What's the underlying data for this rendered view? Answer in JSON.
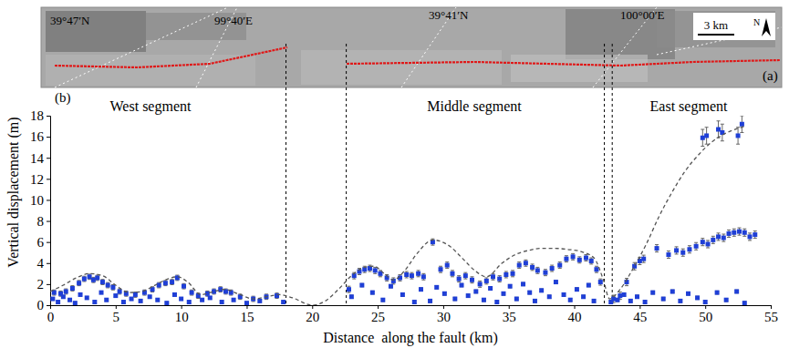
{
  "chart_data": {
    "type": "scatter",
    "x_label": "Distance  along the fault (km)",
    "y_label": "Vertical displacement (m)",
    "xlim": [
      0,
      55
    ],
    "xticks": [
      0,
      5,
      10,
      15,
      20,
      25,
      30,
      35,
      40,
      45,
      50,
      55
    ],
    "ylim": [
      0,
      18
    ],
    "yticks": [
      0,
      2,
      4,
      6,
      8,
      10,
      12,
      14,
      16,
      18
    ],
    "panel_labels": [
      "(a)",
      "(b)"
    ],
    "segment_labels": [
      "West segment",
      "Middle segment",
      "East segment"
    ],
    "map_labels": [
      "39°47′N",
      "99°40′E",
      "39°41′N",
      "100°00′E"
    ],
    "scale_bar": "3 km",
    "north_label": "N",
    "segment_boundaries": [
      18,
      22.6,
      42.3,
      42.9
    ],
    "series": [
      {
        "type": "scatter",
        "color": "#1f3fd6",
        "marker": "square",
        "x": [
          0.3,
          0.8,
          1.2,
          1.7,
          2.2,
          2.6,
          3.0,
          3.3,
          3.6,
          4.0,
          4.4,
          4.8,
          5.3,
          5.8,
          6.5,
          7.2,
          7.8,
          8.3,
          8.8,
          9.3,
          9.7,
          10.2,
          10.8,
          11.3,
          12.0,
          12.5,
          13.0,
          13.4,
          13.8,
          14.5,
          15.5,
          16.5,
          17.3
        ],
        "values": [
          1.2,
          1.1,
          1.3,
          1.6,
          2.1,
          2.5,
          2.7,
          2.4,
          2.6,
          2.2,
          1.9,
          1.7,
          1.3,
          1.1,
          1.0,
          1.2,
          1.5,
          1.9,
          2.1,
          2.2,
          2.6,
          1.8,
          1.2,
          0.9,
          1.1,
          1.3,
          1.5,
          1.3,
          1.2,
          0.8,
          0.6,
          0.8,
          0.9
        ],
        "errors": [
          0.25,
          0.25,
          0.25,
          0.25,
          0.25,
          0.25,
          0.25,
          0.25,
          0.25,
          0.25,
          0.25,
          0.25,
          0.25,
          0.25,
          0.25,
          0.25,
          0.25,
          0.25,
          0.25,
          0.25,
          0.25,
          0.25,
          0.25,
          0.25,
          0.25,
          0.25,
          0.25,
          0.25,
          0.25,
          0.25,
          0.25,
          0.25,
          0.25
        ]
      },
      {
        "type": "scatter",
        "color": "#1f3fd6",
        "marker": "square",
        "x": [
          0.2,
          0.6,
          1.0,
          1.5,
          1.9,
          2.3,
          2.8,
          3.4,
          3.9,
          4.3,
          5.0,
          5.6,
          6.2,
          6.9,
          7.6,
          8.2,
          8.9,
          9.5,
          10.0,
          10.6,
          11.6,
          12.2,
          13.1,
          14.0,
          15.0,
          16.0,
          17.8
        ],
        "values": [
          0.6,
          0.3,
          0.8,
          0.5,
          0.2,
          1.0,
          0.7,
          0.3,
          1.2,
          0.5,
          0.9,
          0.3,
          0.6,
          0.4,
          0.8,
          0.5,
          0.2,
          1.0,
          0.6,
          0.3,
          0.5,
          0.7,
          0.3,
          0.5,
          0.2,
          0.4,
          0.3
        ],
        "errors": [
          0.12,
          0.12,
          0.12,
          0.12,
          0.12,
          0.12,
          0.12,
          0.12,
          0.12,
          0.12,
          0.12,
          0.12,
          0.12,
          0.12,
          0.12,
          0.12,
          0.12,
          0.12,
          0.12,
          0.12,
          0.12,
          0.12,
          0.12,
          0.12,
          0.12,
          0.12,
          0.12
        ]
      },
      {
        "type": "scatter",
        "color": "#1f3fd6",
        "marker": "square",
        "x": [
          22.8,
          23.2,
          23.6,
          24.0,
          24.4,
          24.8,
          25.2,
          25.7,
          26.2,
          26.7,
          27.2,
          27.6,
          28.1,
          28.5,
          29.2,
          29.8,
          30.3,
          30.7,
          31.2,
          31.7,
          32.2,
          32.8,
          33.3,
          33.8,
          34.3,
          34.8,
          35.3,
          35.8,
          36.3,
          36.8,
          37.2,
          37.8,
          38.3,
          38.9,
          39.4,
          39.9,
          40.4,
          40.9,
          41.3,
          41.7,
          42.0
        ],
        "values": [
          1.5,
          2.8,
          3.2,
          3.4,
          3.5,
          3.3,
          3.0,
          2.6,
          2.3,
          2.6,
          2.9,
          2.8,
          3.0,
          2.7,
          6.0,
          3.4,
          3.8,
          3.0,
          2.5,
          2.8,
          2.4,
          2.0,
          2.3,
          2.7,
          2.5,
          2.9,
          3.0,
          3.8,
          4.0,
          3.6,
          3.3,
          3.1,
          3.5,
          3.8,
          4.4,
          4.6,
          4.3,
          4.5,
          4.2,
          3.4,
          2.2
        ],
        "errors": [
          0.3,
          0.3,
          0.3,
          0.3,
          0.3,
          0.3,
          0.3,
          0.3,
          0.3,
          0.3,
          0.3,
          0.3,
          0.3,
          0.3,
          0.3,
          0.3,
          0.3,
          0.3,
          0.3,
          0.3,
          0.3,
          0.3,
          0.3,
          0.3,
          0.3,
          0.3,
          0.3,
          0.3,
          0.3,
          0.3,
          0.3,
          0.3,
          0.3,
          0.3,
          0.3,
          0.3,
          0.3,
          0.3,
          0.3,
          0.3,
          0.3
        ]
      },
      {
        "type": "scatter",
        "color": "#1f3fd6",
        "marker": "square",
        "x": [
          23.0,
          23.8,
          24.6,
          25.4,
          26.0,
          26.9,
          27.8,
          28.3,
          29.0,
          29.5,
          30.1,
          30.9,
          31.4,
          31.9,
          32.5,
          33.1,
          33.6,
          34.1,
          34.6,
          35.1,
          35.6,
          36.1,
          36.6,
          37.0,
          37.5,
          38.1,
          38.6,
          39.2,
          39.7,
          40.2,
          40.7,
          41.1,
          41.5
        ],
        "values": [
          0.8,
          1.9,
          1.2,
          0.5,
          1.8,
          1.0,
          0.3,
          1.5,
          0.4,
          1.7,
          1.1,
          0.6,
          1.9,
          0.9,
          1.3,
          0.5,
          1.6,
          0.3,
          1.1,
          1.8,
          0.6,
          2.0,
          1.2,
          0.4,
          1.4,
          0.8,
          2.2,
          1.0,
          0.5,
          1.5,
          0.8,
          1.9,
          0.4
        ],
        "errors": [
          0.15,
          0.15,
          0.15,
          0.15,
          0.15,
          0.15,
          0.15,
          0.15,
          0.15,
          0.15,
          0.15,
          0.15,
          0.15,
          0.15,
          0.15,
          0.15,
          0.15,
          0.15,
          0.15,
          0.15,
          0.15,
          0.15,
          0.15,
          0.15,
          0.15,
          0.15,
          0.15,
          0.15,
          0.15,
          0.15,
          0.15,
          0.15,
          0.15
        ]
      },
      {
        "type": "scatter",
        "color": "#1f3fd6",
        "marker": "square",
        "x": [
          43.0,
          43.5,
          44.0,
          44.6,
          45.0,
          45.3,
          46.3,
          47.2,
          47.8,
          48.3,
          48.8,
          49.3,
          49.8,
          50.2,
          50.6,
          51.0,
          51.4,
          51.8,
          52.2,
          52.6,
          53.0,
          53.4,
          53.8
        ],
        "values": [
          0.6,
          0.9,
          2.2,
          3.7,
          4.2,
          4.4,
          5.4,
          4.8,
          5.2,
          5.0,
          5.3,
          5.6,
          6.0,
          5.8,
          6.2,
          6.5,
          6.4,
          6.8,
          6.9,
          7.0,
          6.9,
          6.5,
          6.7
        ],
        "errors": [
          0.35,
          0.35,
          0.35,
          0.35,
          0.35,
          0.35,
          0.35,
          0.35,
          0.35,
          0.35,
          0.35,
          0.35,
          0.35,
          0.35,
          0.35,
          0.35,
          0.35,
          0.35,
          0.35,
          0.35,
          0.35,
          0.35,
          0.35
        ]
      },
      {
        "type": "scatter",
        "color": "#1f3fd6",
        "marker": "square",
        "x": [
          49.8,
          50.1,
          51.0,
          51.3,
          52.5,
          52.8
        ],
        "values": [
          15.9,
          16.1,
          16.7,
          16.4,
          16.1,
          17.2
        ],
        "errors": [
          0.8,
          0.8,
          0.8,
          0.8,
          0.8,
          0.8
        ]
      },
      {
        "type": "scatter",
        "color": "#1f3fd6",
        "marker": "square",
        "x": [
          42.8,
          43.3,
          43.8,
          44.3,
          44.8,
          45.4,
          46.0,
          46.8,
          47.5,
          48.1,
          48.7,
          49.4,
          50.0,
          50.9,
          51.6,
          52.4,
          53.0
        ],
        "values": [
          0.3,
          0.5,
          1.0,
          0.4,
          0.8,
          0.3,
          1.2,
          0.6,
          1.3,
          0.4,
          1.1,
          0.7,
          0.3,
          1.2,
          0.5,
          1.3,
          0.2
        ],
        "errors": [
          0.15,
          0.15,
          0.15,
          0.15,
          0.15,
          0.15,
          0.15,
          0.15,
          0.15,
          0.15,
          0.15,
          0.15,
          0.15,
          0.15,
          0.15,
          0.15,
          0.15
        ]
      },
      {
        "type": "line",
        "color": "#555555",
        "line_style": "dashed",
        "x": [
          0,
          1,
          2,
          3,
          4,
          5,
          6,
          7,
          8,
          9,
          9.7,
          10.5,
          11.5,
          12.5,
          13.3,
          14.5,
          15.5,
          16.5,
          17.5,
          18.5,
          20,
          21,
          22,
          23,
          24,
          24.7,
          25.5,
          26.2,
          27,
          28,
          29.2,
          30.5,
          31.5,
          32.5,
          33.3,
          34.5,
          35.5,
          36.5,
          37.5,
          38.5,
          39.5,
          40.5,
          41.5,
          42.2,
          42.7,
          43.5,
          44.5,
          45.5,
          46.5,
          47.5,
          48.5,
          49.5,
          50.5,
          51.5,
          52.5,
          53
        ],
        "values": [
          1.3,
          1.9,
          2.6,
          3.0,
          2.8,
          1.9,
          1.2,
          1.3,
          1.9,
          2.5,
          2.7,
          2.2,
          1.0,
          1.3,
          1.5,
          1.0,
          0.6,
          0.8,
          1.0,
          0.7,
          0.0,
          0.4,
          1.5,
          2.8,
          3.6,
          3.7,
          3.0,
          2.4,
          3.2,
          4.9,
          6.2,
          5.6,
          4.4,
          3.2,
          2.7,
          4.0,
          4.8,
          5.2,
          5.4,
          5.4,
          5.3,
          5.1,
          4.5,
          2.5,
          0.6,
          1.5,
          3.5,
          5.8,
          8.5,
          10.8,
          12.8,
          14.3,
          15.5,
          16.3,
          16.8,
          17.0
        ]
      }
    ]
  }
}
